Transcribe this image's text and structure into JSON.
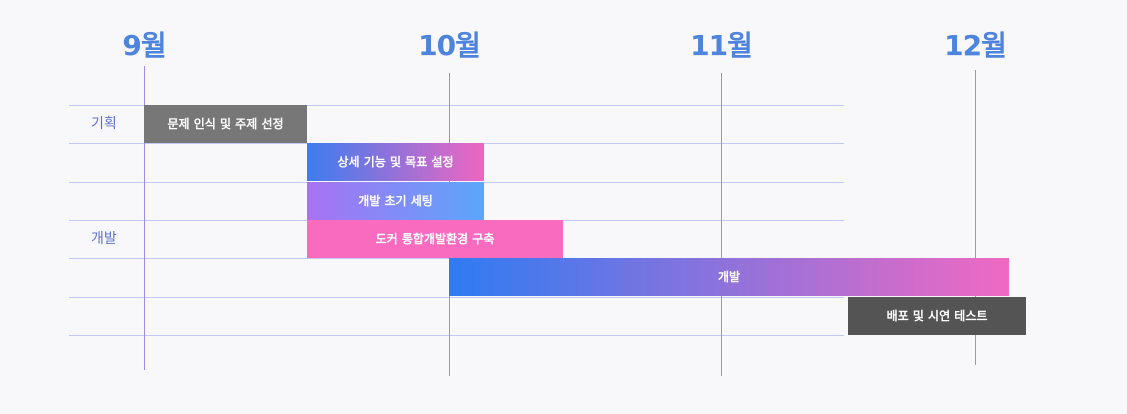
{
  "chart_data": {
    "type": "gantt",
    "months": [
      {
        "label": "9월",
        "date": "2023-09-01"
      },
      {
        "label": "10월",
        "date": "2023-10-01"
      },
      {
        "label": "11월",
        "date": "2023-11-01"
      },
      {
        "label": "12월",
        "date": "2023-12-01"
      }
    ],
    "phases": [
      {
        "label": "기획",
        "row": 0
      },
      {
        "label": "개발",
        "row": 3
      }
    ],
    "tasks": [
      {
        "name": "문제 인식 및 주제 선정",
        "row": 0,
        "start": "2023-09-01",
        "end": "2023-09-17",
        "fill": "solid",
        "colors": [
          "#777777"
        ]
      },
      {
        "name": "상세 기능 및 목표 설정",
        "row": 1,
        "start": "2023-09-17",
        "end": "2023-10-05",
        "fill": "gradient",
        "colors": [
          "#3d7cf0",
          "#ee66c0"
        ]
      },
      {
        "name": "개발 초기 세팅",
        "row": 2,
        "start": "2023-09-17",
        "end": "2023-10-05",
        "fill": "gradient",
        "colors": [
          "#a872f3",
          "#5ba6fb"
        ]
      },
      {
        "name": "도커 통합개발환경 구축",
        "row": 3,
        "start": "2023-09-17",
        "end": "2023-10-14",
        "fill": "solid",
        "colors": [
          "#f86bbf"
        ]
      },
      {
        "name": "개발",
        "row": 4,
        "start": "2023-10-01",
        "end": "2023-12-05",
        "fill": "gradient",
        "colors": [
          "#2f7bf2",
          "#f069c3"
        ]
      },
      {
        "name": "배포 및 시연 테스트",
        "row": 5,
        "start": "2023-11-16",
        "end": "2023-12-07",
        "fill": "solid",
        "colors": [
          "#545454"
        ]
      }
    ],
    "grid": true,
    "colors": {
      "month_label": "#4f84dd",
      "phase_label": "#5a6fd0",
      "month_line": "#9a8cf0",
      "grid_line": "#c3c9f2"
    }
  }
}
